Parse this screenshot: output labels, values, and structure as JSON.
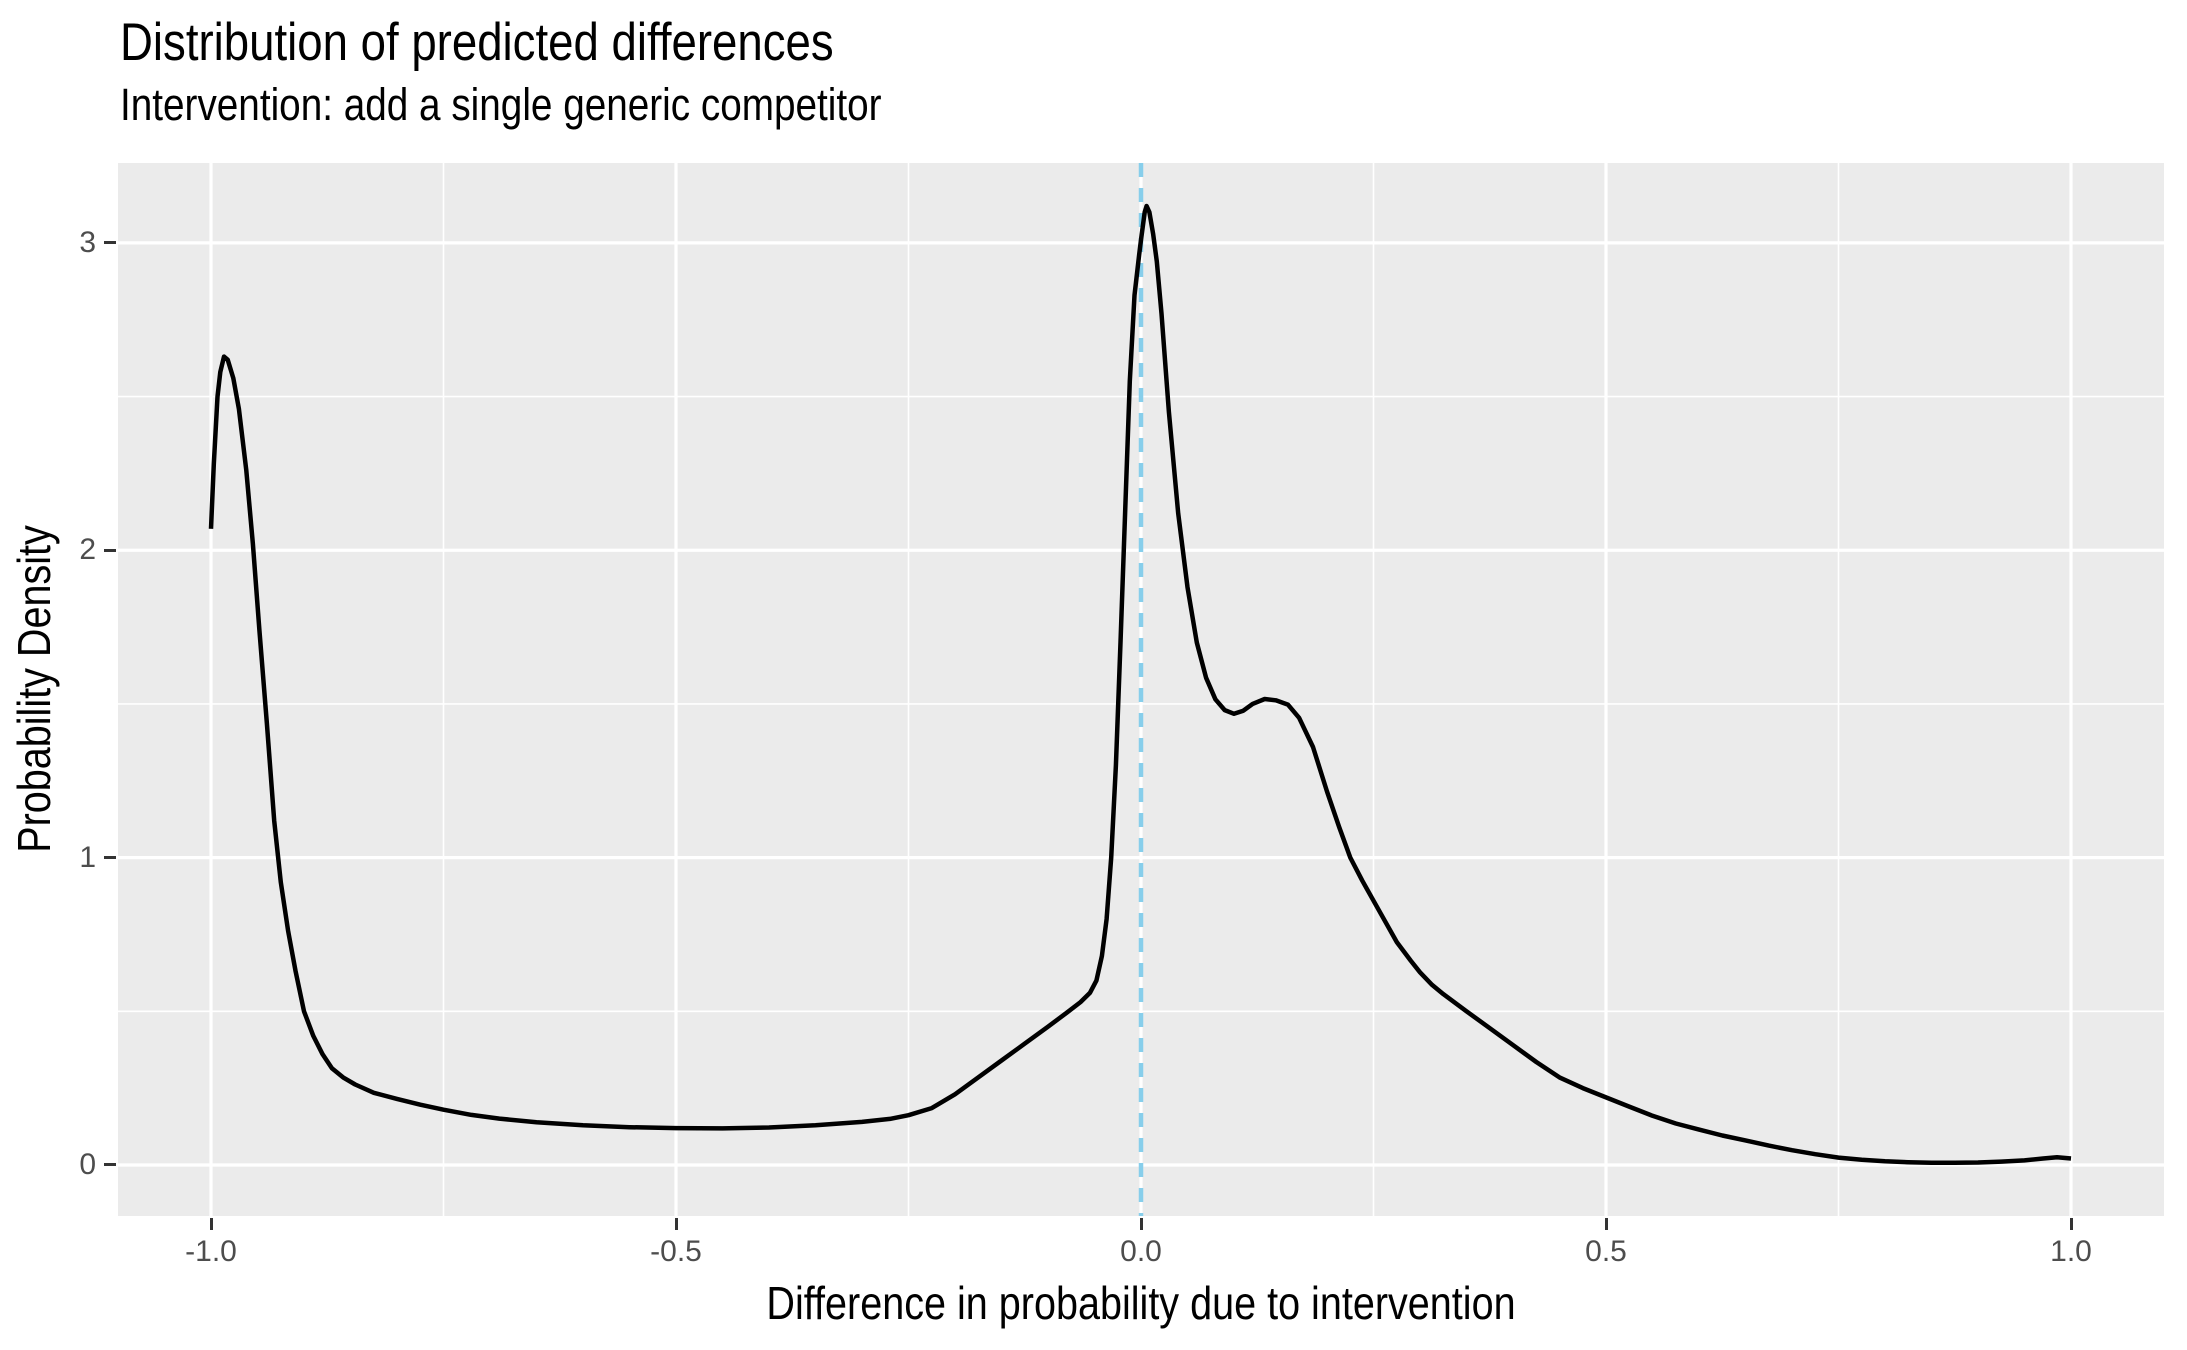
{
  "page": {
    "background": "#FFFFFF"
  },
  "header": {
    "title": "Distribution of predicted differences",
    "subtitle": "Intervention: add a single generic competitor"
  },
  "chart_data": {
    "type": "line",
    "title": "Distribution of predicted differences",
    "subtitle": "Intervention: add a single generic competitor",
    "xlabel": "Difference in probability due to intervention",
    "ylabel": "Probability Density",
    "x_domain": [
      -1.1,
      1.1
    ],
    "y_domain": [
      -0.166,
      3.26
    ],
    "grid": "on",
    "legend": "none",
    "panel_background": "#EBEBEB",
    "grid_color": "#FFFFFF",
    "tick_label_color": "#4D4D4D",
    "tick_mark_color": "#333333",
    "x_ticks": [
      {
        "value": -1.0,
        "label": "-1.0"
      },
      {
        "value": -0.5,
        "label": "-0.5"
      },
      {
        "value": 0.0,
        "label": "0.0"
      },
      {
        "value": 0.5,
        "label": "0.5"
      },
      {
        "value": 1.0,
        "label": "1.0"
      }
    ],
    "x_minor_ticks": [
      -0.75,
      -0.25,
      0.25,
      0.75
    ],
    "y_ticks": [
      {
        "value": 0,
        "label": "0"
      },
      {
        "value": 1,
        "label": "1"
      },
      {
        "value": 2,
        "label": "2"
      },
      {
        "value": 3,
        "label": "3"
      }
    ],
    "y_minor_ticks": [
      0.5,
      1.5,
      2.5
    ],
    "reference_line": {
      "x": 0.0,
      "style": "dashed",
      "color": "#87CEEB"
    },
    "series": [
      {
        "name": "density of predicted differences",
        "color": "#000000",
        "points": [
          [
            -1.0,
            2.07
          ],
          [
            -0.997,
            2.28
          ],
          [
            -0.993,
            2.5
          ],
          [
            -0.99,
            2.58
          ],
          [
            -0.986,
            2.63
          ],
          [
            -0.982,
            2.62
          ],
          [
            -0.976,
            2.56
          ],
          [
            -0.97,
            2.46
          ],
          [
            -0.962,
            2.26
          ],
          [
            -0.955,
            2.02
          ],
          [
            -0.948,
            1.74
          ],
          [
            -0.94,
            1.44
          ],
          [
            -0.932,
            1.12
          ],
          [
            -0.925,
            0.92
          ],
          [
            -0.917,
            0.76
          ],
          [
            -0.909,
            0.63
          ],
          [
            -0.9,
            0.5
          ],
          [
            -0.89,
            0.42
          ],
          [
            -0.88,
            0.36
          ],
          [
            -0.87,
            0.315
          ],
          [
            -0.858,
            0.285
          ],
          [
            -0.845,
            0.262
          ],
          [
            -0.825,
            0.235
          ],
          [
            -0.8,
            0.215
          ],
          [
            -0.775,
            0.196
          ],
          [
            -0.75,
            0.18
          ],
          [
            -0.72,
            0.163
          ],
          [
            -0.69,
            0.151
          ],
          [
            -0.65,
            0.139
          ],
          [
            -0.6,
            0.129
          ],
          [
            -0.55,
            0.123
          ],
          [
            -0.5,
            0.12
          ],
          [
            -0.45,
            0.119
          ],
          [
            -0.4,
            0.122
          ],
          [
            -0.35,
            0.129
          ],
          [
            -0.3,
            0.14
          ],
          [
            -0.27,
            0.15
          ],
          [
            -0.25,
            0.162
          ],
          [
            -0.225,
            0.185
          ],
          [
            -0.2,
            0.23
          ],
          [
            -0.175,
            0.285
          ],
          [
            -0.15,
            0.34
          ],
          [
            -0.125,
            0.395
          ],
          [
            -0.1,
            0.45
          ],
          [
            -0.08,
            0.495
          ],
          [
            -0.065,
            0.53
          ],
          [
            -0.055,
            0.56
          ],
          [
            -0.048,
            0.6
          ],
          [
            -0.042,
            0.68
          ],
          [
            -0.037,
            0.8
          ],
          [
            -0.032,
            1.0
          ],
          [
            -0.027,
            1.3
          ],
          [
            -0.022,
            1.7
          ],
          [
            -0.017,
            2.13
          ],
          [
            -0.012,
            2.55
          ],
          [
            -0.007,
            2.83
          ],
          [
            -0.002,
            2.96
          ],
          [
            0.0,
            3.01
          ],
          [
            0.004,
            3.1
          ],
          [
            0.006,
            3.12
          ],
          [
            0.009,
            3.1
          ],
          [
            0.013,
            3.03
          ],
          [
            0.017,
            2.94
          ],
          [
            0.022,
            2.77
          ],
          [
            0.03,
            2.45
          ],
          [
            0.04,
            2.12
          ],
          [
            0.05,
            1.88
          ],
          [
            0.06,
            1.7
          ],
          [
            0.07,
            1.585
          ],
          [
            0.08,
            1.515
          ],
          [
            0.09,
            1.48
          ],
          [
            0.1,
            1.468
          ],
          [
            0.11,
            1.478
          ],
          [
            0.12,
            1.5
          ],
          [
            0.133,
            1.516
          ],
          [
            0.145,
            1.512
          ],
          [
            0.158,
            1.498
          ],
          [
            0.17,
            1.455
          ],
          [
            0.185,
            1.36
          ],
          [
            0.2,
            1.215
          ],
          [
            0.213,
            1.1
          ],
          [
            0.225,
            1.0
          ],
          [
            0.238,
            0.925
          ],
          [
            0.25,
            0.86
          ],
          [
            0.263,
            0.79
          ],
          [
            0.275,
            0.725
          ],
          [
            0.29,
            0.665
          ],
          [
            0.3,
            0.627
          ],
          [
            0.313,
            0.586
          ],
          [
            0.325,
            0.556
          ],
          [
            0.35,
            0.5
          ],
          [
            0.375,
            0.445
          ],
          [
            0.4,
            0.39
          ],
          [
            0.425,
            0.335
          ],
          [
            0.45,
            0.285
          ],
          [
            0.475,
            0.25
          ],
          [
            0.5,
            0.22
          ],
          [
            0.525,
            0.19
          ],
          [
            0.55,
            0.16
          ],
          [
            0.575,
            0.135
          ],
          [
            0.6,
            0.115
          ],
          [
            0.625,
            0.096
          ],
          [
            0.65,
            0.08
          ],
          [
            0.675,
            0.063
          ],
          [
            0.7,
            0.048
          ],
          [
            0.725,
            0.035
          ],
          [
            0.75,
            0.024
          ],
          [
            0.775,
            0.017
          ],
          [
            0.8,
            0.012
          ],
          [
            0.825,
            0.009
          ],
          [
            0.85,
            0.007
          ],
          [
            0.875,
            0.007
          ],
          [
            0.9,
            0.008
          ],
          [
            0.925,
            0.011
          ],
          [
            0.95,
            0.015
          ],
          [
            0.97,
            0.021
          ],
          [
            0.985,
            0.025
          ],
          [
            1.0,
            0.021
          ]
        ]
      }
    ]
  }
}
